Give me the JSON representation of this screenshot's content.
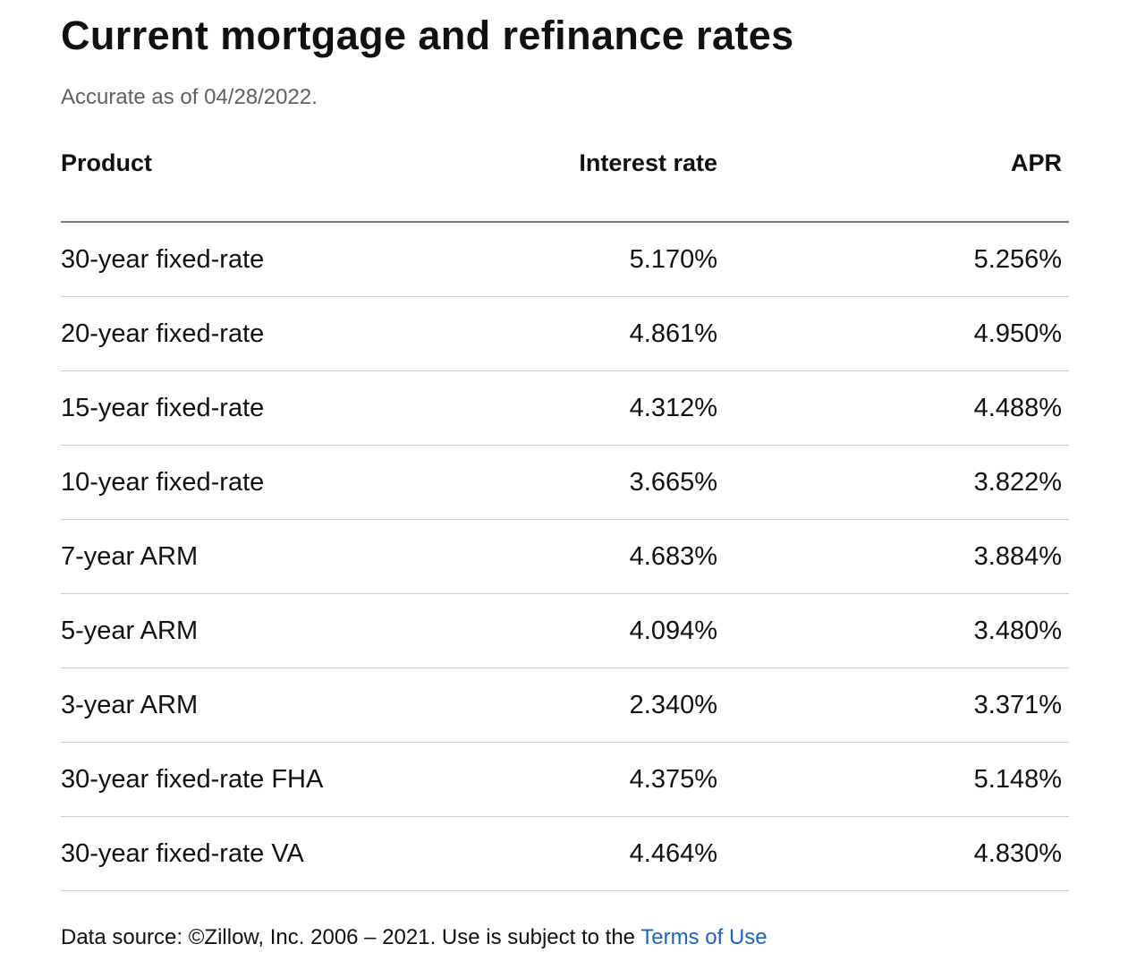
{
  "header": {
    "title": "Current mortgage and refinance rates",
    "subtitle": "Accurate as of 04/28/2022."
  },
  "table": {
    "columns": [
      "Product",
      "Interest rate",
      "APR"
    ],
    "rows": [
      {
        "product": "30-year fixed-rate",
        "interest_rate": "5.170%",
        "apr": "5.256%"
      },
      {
        "product": "20-year fixed-rate",
        "interest_rate": "4.861%",
        "apr": "4.950%"
      },
      {
        "product": "15-year fixed-rate",
        "interest_rate": "4.312%",
        "apr": "4.488%"
      },
      {
        "product": "10-year fixed-rate",
        "interest_rate": "3.665%",
        "apr": "3.822%"
      },
      {
        "product": "7-year ARM",
        "interest_rate": "4.683%",
        "apr": "3.884%"
      },
      {
        "product": "5-year ARM",
        "interest_rate": "4.094%",
        "apr": "3.480%"
      },
      {
        "product": "3-year ARM",
        "interest_rate": "2.340%",
        "apr": "3.371%"
      },
      {
        "product": "30-year fixed-rate FHA",
        "interest_rate": "4.375%",
        "apr": "5.148%"
      },
      {
        "product": "30-year fixed-rate VA",
        "interest_rate": "4.464%",
        "apr": "4.830%"
      }
    ]
  },
  "footer": {
    "source_text": "Data source: ©Zillow, Inc. 2006 – 2021. Use is subject to the ",
    "link_label": "Terms of Use",
    "link_color": "#1a64c8"
  }
}
